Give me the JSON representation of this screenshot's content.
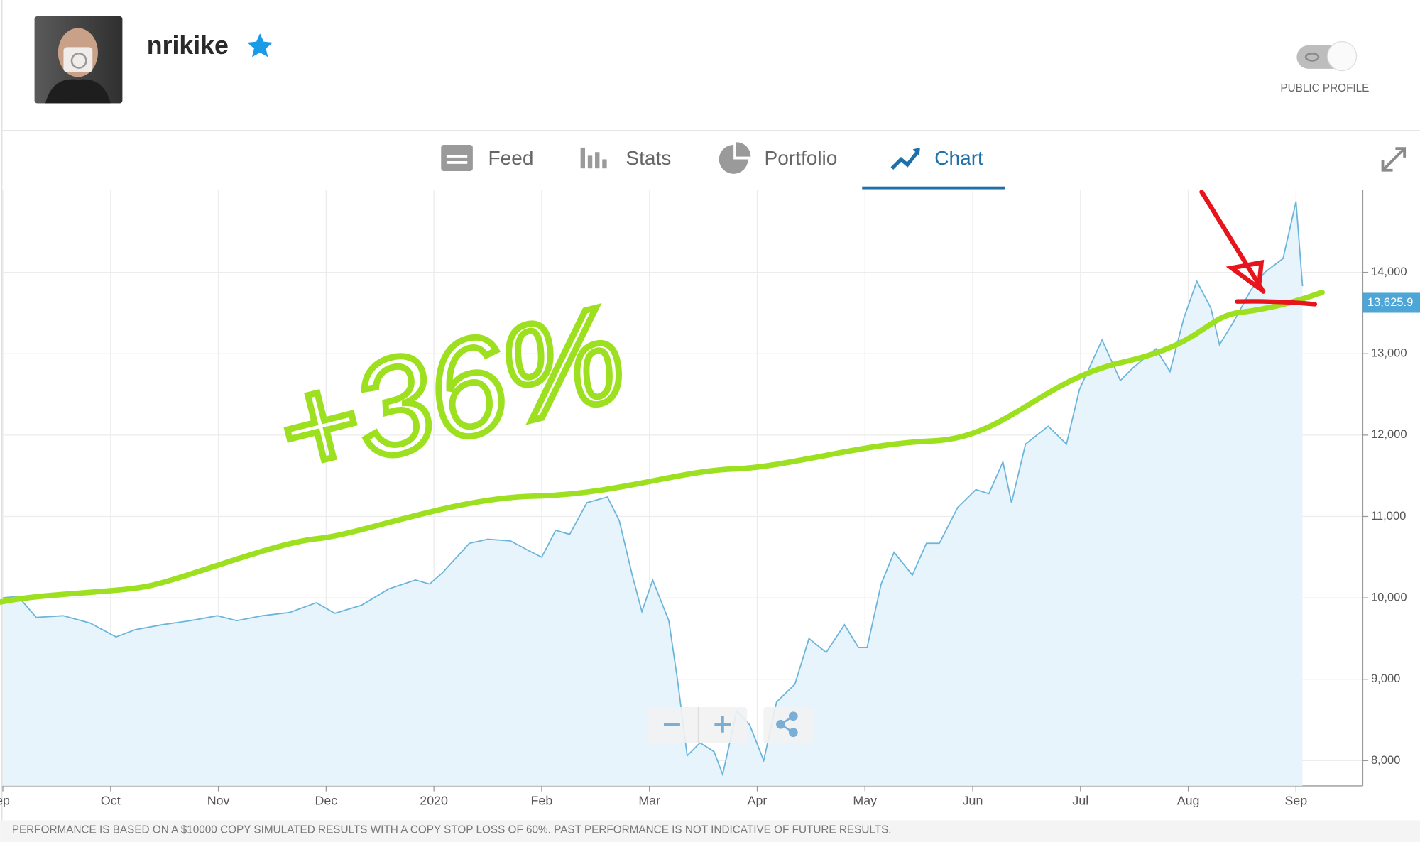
{
  "profile": {
    "username": "nrikike",
    "toggle_label": "PUBLIC PROFILE"
  },
  "tabs": [
    "Feed",
    "Stats",
    "Portfolio",
    "Chart"
  ],
  "active_tab": "Chart",
  "chart_data": {
    "type": "area",
    "annotation": "+36%",
    "color": "#6bb5da",
    "fill": "#e8f4fb",
    "x": [
      0,
      0.14,
      0.31,
      0.56,
      0.81,
      1.05,
      1.23,
      1.48,
      1.74,
      1.99,
      2.17,
      2.41,
      2.66,
      2.91,
      3.08,
      3.33,
      3.58,
      3.83,
      3.96,
      4.08,
      4.33,
      4.5,
      4.71,
      4.88,
      5,
      5.13,
      5.26,
      5.42,
      5.61,
      5.72,
      5.84,
      5.93,
      6.03,
      6.18,
      6.26,
      6.35,
      6.47,
      6.6,
      6.68,
      6.81,
      6.93,
      7.06,
      7.18,
      7.35,
      7.48,
      7.64,
      7.81,
      7.94,
      8.02,
      8.15,
      8.27,
      8.44,
      8.57,
      8.69,
      8.86,
      9.03,
      9.15,
      9.28,
      9.36,
      9.49,
      9.7,
      9.87,
      9.99,
      10.2,
      10.37,
      10.49,
      10.7,
      10.83,
      10.96,
      11.08,
      11.21,
      11.29,
      11.42,
      11.58,
      11.71,
      11.88,
      12,
      12.06
    ],
    "values": [
      10000,
      10020,
      9760,
      9780,
      9690,
      9520,
      9610,
      9670,
      9720,
      9780,
      9720,
      9780,
      9820,
      9940,
      9810,
      9910,
      10110,
      10220,
      10170,
      10310,
      10670,
      10720,
      10700,
      10580,
      10500,
      10830,
      10780,
      11170,
      11240,
      10950,
      10280,
      9830,
      10220,
      9720,
      9000,
      8060,
      8220,
      8110,
      7830,
      8610,
      8440,
      8000,
      8720,
      8940,
      9500,
      9330,
      9670,
      9390,
      9390,
      10170,
      10560,
      10280,
      10670,
      10670,
      11110,
      11330,
      11280,
      11670,
      11170,
      11890,
      12110,
      11890,
      12560,
      13170,
      12670,
      12830,
      13060,
      12780,
      13440,
      13890,
      13560,
      13110,
      13390,
      13780,
      14000,
      14170,
      14870,
      13830
    ],
    "current_value": {
      "value": 13625.9,
      "label": "13,625.9"
    },
    "xlim": [
      0,
      12.62
    ],
    "xticks": [
      {
        "value": 0,
        "label": "ep"
      },
      {
        "value": 1,
        "label": "Oct"
      },
      {
        "value": 2,
        "label": "Nov"
      },
      {
        "value": 3,
        "label": "Dec"
      },
      {
        "value": 4,
        "label": "2020"
      },
      {
        "value": 5,
        "label": "Feb"
      },
      {
        "value": 6,
        "label": "Mar"
      },
      {
        "value": 7,
        "label": "Apr"
      },
      {
        "value": 8,
        "label": "May"
      },
      {
        "value": 9,
        "label": "Jun"
      },
      {
        "value": 10,
        "label": "Jul"
      },
      {
        "value": 11,
        "label": "Aug"
      },
      {
        "value": 12,
        "label": "Sep"
      }
    ],
    "ylim": [
      7690,
      15010
    ],
    "yticks": [
      {
        "value": 8000,
        "label": "8,000"
      },
      {
        "value": 9000,
        "label": "9,000"
      },
      {
        "value": 10000,
        "label": "10,000"
      },
      {
        "value": 11000,
        "label": "11,000"
      },
      {
        "value": 12000,
        "label": "12,000"
      },
      {
        "value": 13000,
        "label": "13,000"
      },
      {
        "value": 14000,
        "label": "14,000"
      }
    ],
    "grid": true
  },
  "disclaimer": "PERFORMANCE IS BASED ON A $10000 COPY SIMULATED RESULTS WITH A COPY STOP LOSS OF 60%. PAST PERFORMANCE IS NOT INDICATIVE OF FUTURE RESULTS."
}
